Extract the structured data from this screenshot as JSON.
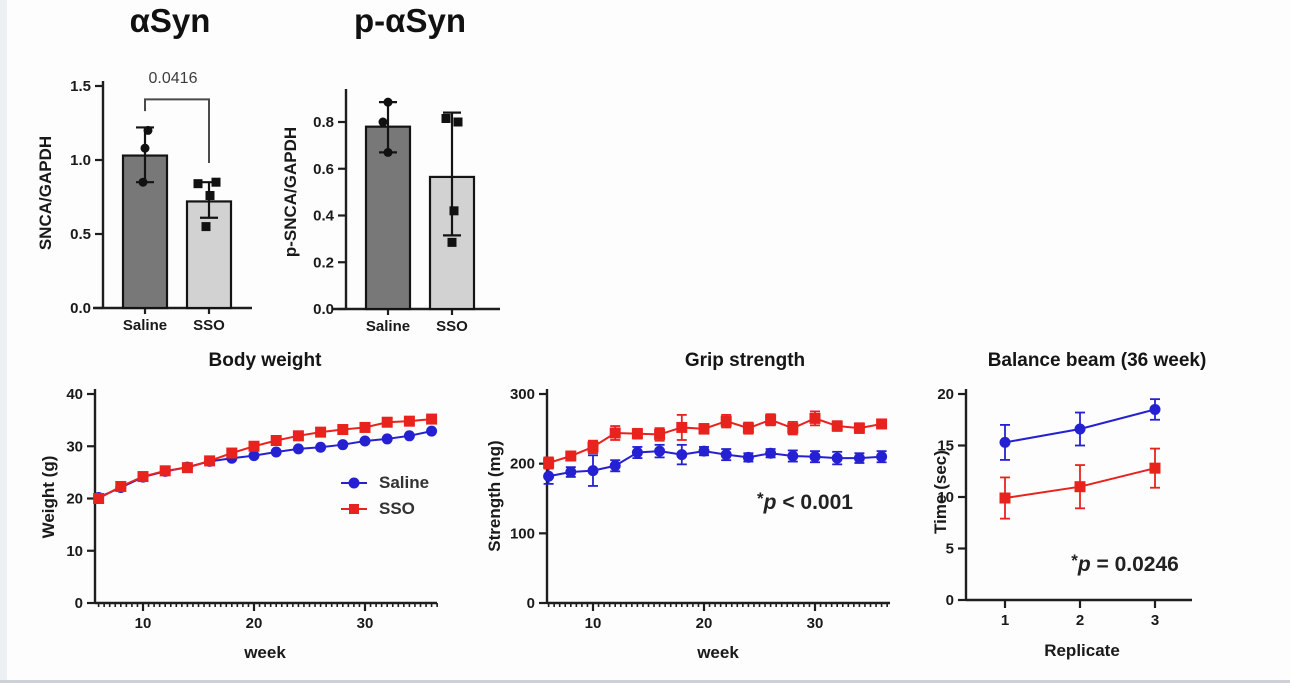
{
  "figure": {
    "colors": {
      "saline": "#2521d3",
      "sso": "#e8221d",
      "bar_dark": "#787878",
      "bar_light": "#d2d2d2",
      "axis": "#1e1e1e"
    }
  },
  "chart_data": [
    {
      "id": "asyn",
      "type": "bar",
      "title": "αSyn",
      "ylabel": "SNCA/GAPDH",
      "categories": [
        "Saline",
        "SSO"
      ],
      "values": [
        1.03,
        0.72
      ],
      "errors_low": [
        0.85,
        0.61
      ],
      "errors_high": [
        1.22,
        0.85
      ],
      "bar_fills": [
        "#787878",
        "#d2d2d2"
      ],
      "point_shapes": [
        "circle",
        "square"
      ],
      "points": [
        [
          1.2,
          1.08,
          0.85
        ],
        [
          0.84,
          0.85,
          0.76,
          0.55
        ]
      ],
      "points_dx": [
        [
          3,
          0,
          -2
        ],
        [
          -11,
          7,
          1,
          -3
        ]
      ],
      "ylim": [
        0,
        1.5
      ],
      "yticks": [
        {
          "v": 0,
          "label": "0.0"
        },
        {
          "v": 0.5,
          "label": "0.5"
        },
        {
          "v": 1.0,
          "label": "1.0"
        },
        {
          "v": 1.5,
          "label": "1.5"
        }
      ],
      "significance": {
        "label": "0.0416",
        "bracket_top": 1.41,
        "bracket_left_end": 1.33,
        "bracket_right_end": 0.98
      }
    },
    {
      "id": "pasyn",
      "type": "bar",
      "title": "p-αSyn",
      "ylabel": "p-SNCA/GAPDH",
      "categories": [
        "Saline",
        "SSO"
      ],
      "values": [
        0.78,
        0.565
      ],
      "errors_low": [
        0.67,
        0.315
      ],
      "errors_high": [
        0.885,
        0.84
      ],
      "bar_fills": [
        "#787878",
        "#d2d2d2"
      ],
      "point_shapes": [
        "circle",
        "square"
      ],
      "points": [
        [
          0.885,
          0.8,
          0.67
        ],
        [
          0.815,
          0.8,
          0.42,
          0.285
        ]
      ],
      "points_dx": [
        [
          0,
          -5,
          0
        ],
        [
          -6,
          6,
          2,
          0
        ]
      ],
      "ylim": [
        0,
        0.92
      ],
      "yticks": [
        {
          "v": 0,
          "label": "0.0"
        },
        {
          "v": 0.2,
          "label": "0.2"
        },
        {
          "v": 0.4,
          "label": "0.4"
        },
        {
          "v": 0.6,
          "label": "0.6"
        },
        {
          "v": 0.8,
          "label": "0.8"
        }
      ]
    },
    {
      "id": "bw",
      "type": "line",
      "title": "Body weight",
      "xlabel": "week",
      "ylabel": "Weight (g)",
      "x": [
        6,
        8,
        10,
        12,
        14,
        16,
        18,
        20,
        22,
        24,
        26,
        28,
        30,
        32,
        34,
        36
      ],
      "series": [
        {
          "name": "Saline",
          "color": "#2521d3",
          "marker": "circle",
          "values": [
            20.2,
            22.1,
            24.1,
            25.2,
            26.0,
            27.1,
            27.7,
            28.2,
            28.9,
            29.5,
            29.8,
            30.3,
            31.0,
            31.4,
            32.0,
            32.9
          ]
        },
        {
          "name": "SSO",
          "color": "#e8221d",
          "marker": "square",
          "values": [
            20.0,
            22.3,
            24.2,
            25.3,
            25.9,
            27.2,
            28.7,
            30.0,
            31.1,
            32.0,
            32.7,
            33.2,
            33.6,
            34.6,
            34.8,
            35.2
          ]
        }
      ],
      "ylim": [
        0,
        40
      ],
      "yticks": [
        0,
        10,
        20,
        30,
        40
      ],
      "xticks": [
        10,
        20,
        30
      ],
      "legend": true
    },
    {
      "id": "gs",
      "type": "line",
      "title": "Grip strength",
      "xlabel": "week",
      "ylabel": "Strength (mg)",
      "x": [
        6,
        8,
        10,
        12,
        14,
        16,
        18,
        20,
        22,
        24,
        26,
        28,
        30,
        32,
        34,
        36
      ],
      "series": [
        {
          "name": "Saline",
          "color": "#2521d3",
          "marker": "circle",
          "values": [
            182,
            188,
            190,
            197,
            216,
            218,
            213,
            218,
            213,
            209,
            215,
            211,
            210,
            208,
            208,
            210
          ],
          "errors": [
            11,
            7,
            22,
            8,
            8,
            9,
            14,
            6,
            8,
            6,
            6,
            8,
            8,
            9,
            7,
            8
          ]
        },
        {
          "name": "SSO",
          "color": "#e8221d",
          "marker": "square",
          "values": [
            201,
            211,
            224,
            244,
            243,
            242,
            252,
            250,
            261,
            251,
            263,
            251,
            265,
            254,
            251,
            257
          ],
          "errors": [
            8,
            6,
            9,
            10,
            7,
            9,
            18,
            7,
            9,
            8,
            8,
            9,
            10,
            7,
            7,
            6
          ]
        }
      ],
      "ylim": [
        0,
        300
      ],
      "yticks": [
        0,
        100,
        200,
        300
      ],
      "xticks": [
        10,
        20,
        30
      ],
      "annotation": "*p < 0.001"
    },
    {
      "id": "bb",
      "type": "line",
      "title": "Balance beam (36 week)",
      "xlabel": "Replicate",
      "ylabel": "Time (sec)",
      "x": [
        1,
        2,
        3
      ],
      "series": [
        {
          "name": "Saline",
          "color": "#2521d3",
          "marker": "circle",
          "values": [
            15.3,
            16.6,
            18.5
          ],
          "errors": [
            1.7,
            1.6,
            1.0
          ]
        },
        {
          "name": "SSO",
          "color": "#e8221d",
          "marker": "square",
          "values": [
            9.9,
            11.0,
            12.8
          ],
          "errors": [
            2.0,
            2.1,
            1.9
          ]
        }
      ],
      "ylim": [
        0,
        20
      ],
      "yticks": [
        0,
        5,
        10,
        15,
        20
      ],
      "xticks": [
        1,
        2,
        3
      ],
      "annotation": "*p = 0.0246"
    }
  ]
}
